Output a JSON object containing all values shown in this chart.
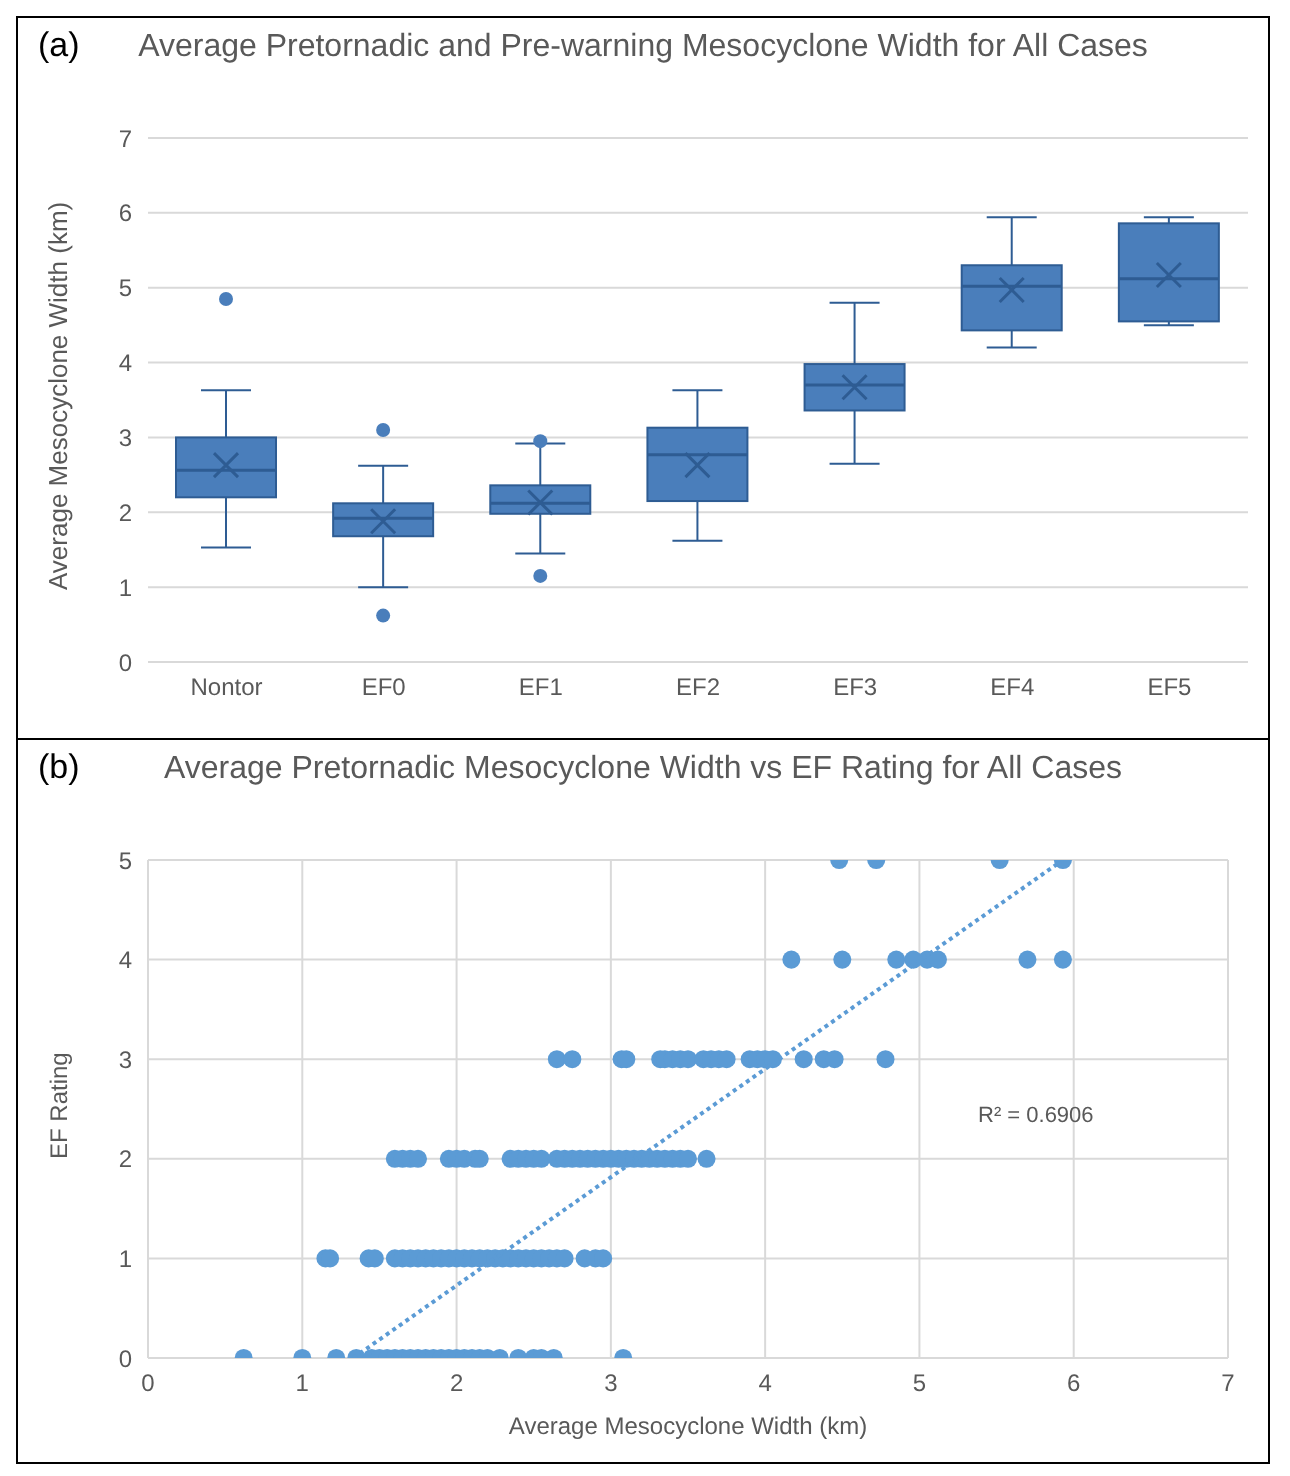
{
  "chart_data": [
    {
      "type": "box",
      "title": "Average Pretornadic and Pre-warning Mesocyclone Width for All Cases",
      "annotations": [
        "(a)"
      ],
      "ylabel": "Average Mesocyclone Width (km)",
      "categories": [
        "Nontor",
        "EF0",
        "EF1",
        "EF2",
        "EF3",
        "EF4",
        "EF5"
      ],
      "color": "#4a7ebb",
      "ylim": [
        0,
        7
      ],
      "yticks": [
        0,
        1,
        2,
        3,
        4,
        5,
        6,
        7
      ],
      "grid": "y",
      "boxes": [
        {
          "low": 1.53,
          "q1": 2.2,
          "median": 2.56,
          "q3": 3.0,
          "high": 3.63,
          "mean": 2.63,
          "outliers": [
            4.85
          ]
        },
        {
          "low": 1.0,
          "q1": 1.68,
          "median": 1.92,
          "q3": 2.12,
          "high": 2.62,
          "mean": 1.88,
          "outliers": [
            3.1,
            0.62
          ]
        },
        {
          "low": 1.45,
          "q1": 1.98,
          "median": 2.12,
          "q3": 2.36,
          "high": 2.92,
          "mean": 2.13,
          "outliers": [
            2.95,
            1.15
          ]
        },
        {
          "low": 1.62,
          "q1": 2.15,
          "median": 2.77,
          "q3": 3.13,
          "high": 3.63,
          "mean": 2.63
        },
        {
          "low": 2.65,
          "q1": 3.36,
          "median": 3.7,
          "q3": 3.98,
          "high": 4.8,
          "mean": 3.67
        },
        {
          "low": 4.2,
          "q1": 4.43,
          "median": 5.02,
          "q3": 5.3,
          "high": 5.94,
          "mean": 4.97
        },
        {
          "low": 4.5,
          "q1": 4.55,
          "median": 5.12,
          "q3": 5.86,
          "high": 5.94,
          "mean": 5.17
        }
      ]
    },
    {
      "type": "scatter",
      "title": "Average Pretornadic Mesocyclone  Width vs EF Rating for All Cases",
      "annotations": [
        "(b)",
        "R² = 0.6906"
      ],
      "xlabel": "Average Mesocyclone Width (km)",
      "ylabel": "EF Rating",
      "xlim": [
        0,
        7
      ],
      "xticks": [
        0,
        1,
        2,
        3,
        4,
        5,
        6,
        7
      ],
      "ylim": [
        0,
        5
      ],
      "yticks": [
        0,
        1,
        2,
        3,
        4,
        5
      ],
      "grid": true,
      "series": [
        {
          "type": "scatter",
          "marker": "circle",
          "color": "#5b9bd5",
          "x": [
            0.62,
            1.0,
            1.22,
            1.35,
            1.45,
            1.5,
            1.55,
            1.6,
            1.65,
            1.7,
            1.75,
            1.8,
            1.85,
            1.9,
            1.95,
            2.0,
            2.05,
            2.1,
            2.15,
            2.2,
            2.28,
            2.4,
            2.5,
            2.55,
            2.63,
            3.08,
            1.15,
            1.18,
            1.43,
            1.47,
            1.6,
            1.65,
            1.7,
            1.75,
            1.8,
            1.85,
            1.9,
            1.95,
            2.0,
            2.05,
            2.1,
            2.15,
            2.2,
            2.25,
            2.3,
            2.35,
            2.4,
            2.45,
            2.5,
            2.55,
            2.6,
            2.65,
            2.7,
            2.83,
            2.9,
            2.95,
            1.6,
            1.65,
            1.7,
            1.75,
            1.95,
            2.0,
            2.05,
            2.12,
            2.15,
            2.35,
            2.4,
            2.45,
            2.5,
            2.55,
            2.65,
            2.7,
            2.75,
            2.8,
            2.85,
            2.9,
            2.95,
            3.0,
            3.05,
            3.1,
            3.15,
            3.2,
            3.25,
            3.3,
            3.35,
            3.4,
            3.45,
            3.5,
            3.62,
            2.65,
            2.75,
            3.07,
            3.1,
            3.32,
            3.35,
            3.4,
            3.45,
            3.5,
            3.6,
            3.65,
            3.7,
            3.75,
            3.9,
            3.95,
            4.0,
            4.05,
            4.25,
            4.38,
            4.45,
            4.78,
            4.17,
            4.5,
            4.85,
            4.96,
            5.05,
            5.12,
            5.7,
            5.93,
            4.48,
            4.72,
            5.52,
            5.93
          ],
          "values": [
            0,
            0,
            0,
            0,
            0,
            0,
            0,
            0,
            0,
            0,
            0,
            0,
            0,
            0,
            0,
            0,
            0,
            0,
            0,
            0,
            0,
            0,
            0,
            0,
            0,
            0,
            1,
            1,
            1,
            1,
            1,
            1,
            1,
            1,
            1,
            1,
            1,
            1,
            1,
            1,
            1,
            1,
            1,
            1,
            1,
            1,
            1,
            1,
            1,
            1,
            1,
            1,
            1,
            1,
            1,
            1,
            2,
            2,
            2,
            2,
            2,
            2,
            2,
            2,
            2,
            2,
            2,
            2,
            2,
            2,
            2,
            2,
            2,
            2,
            2,
            2,
            2,
            2,
            2,
            2,
            2,
            2,
            2,
            2,
            2,
            2,
            2,
            2,
            2,
            3,
            3,
            3,
            3,
            3,
            3,
            3,
            3,
            3,
            3,
            3,
            3,
            3,
            3,
            3,
            3,
            3,
            3,
            3,
            3,
            3,
            4,
            4,
            4,
            4,
            4,
            4,
            4,
            4,
            5,
            5,
            5,
            5
          ]
        },
        {
          "type": "line",
          "marker": "none",
          "line_style": "dotted",
          "color": "#5b9bd5",
          "x": [
            1.33,
            5.93
          ],
          "values": [
            0,
            5
          ]
        }
      ]
    }
  ]
}
